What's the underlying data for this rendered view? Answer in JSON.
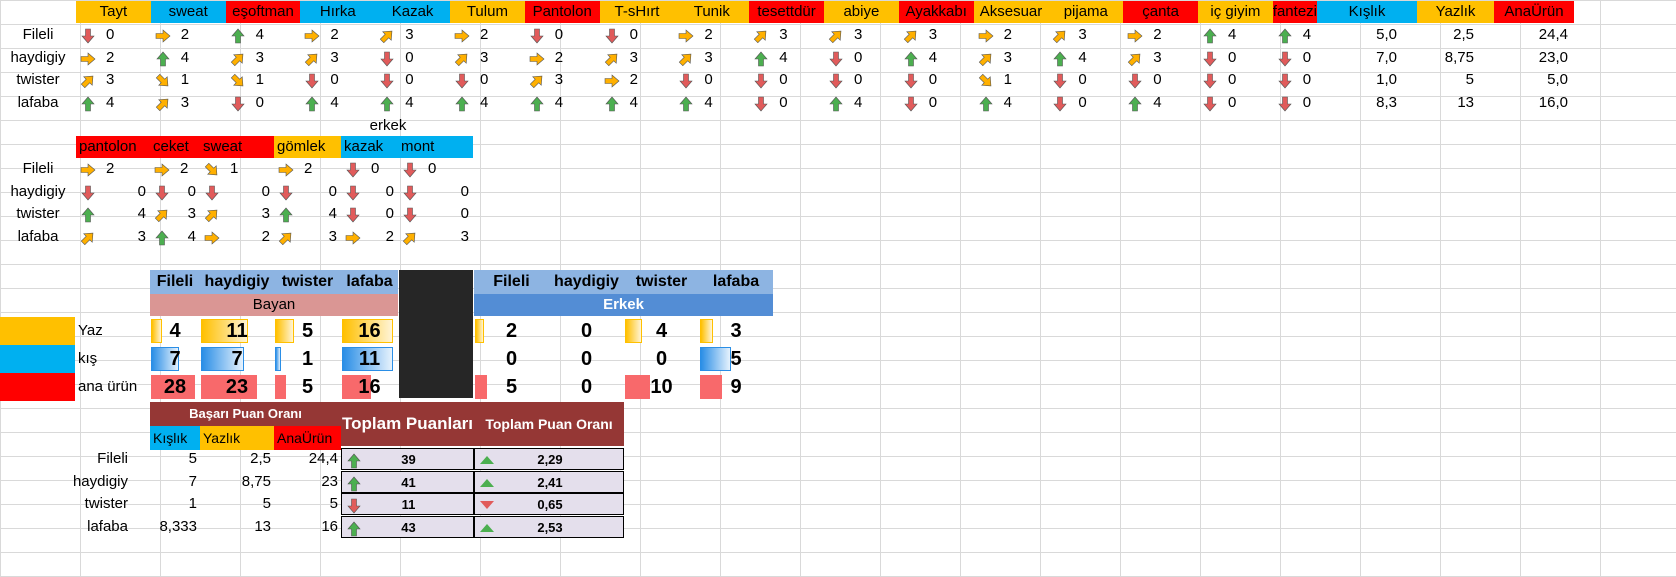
{
  "women_table": {
    "headers": [
      {
        "label": "Tayt",
        "color": "#ffc000"
      },
      {
        "label": "sweat",
        "color": "#00b0f0"
      },
      {
        "label": "eşoftman",
        "color": "#ff0000"
      },
      {
        "label": "Hırka",
        "color": "#00b0f0"
      },
      {
        "label": "Kazak",
        "color": "#00b0f0"
      },
      {
        "label": "Tulum",
        "color": "#ffc000"
      },
      {
        "label": "Pantolon",
        "color": "#ff0000"
      },
      {
        "label": "T-sHırt",
        "color": "#ffc000"
      },
      {
        "label": "Tunik",
        "color": "#ffc000"
      },
      {
        "label": "tesettdür",
        "color": "#ff0000"
      },
      {
        "label": "abiye",
        "color": "#ffc000"
      },
      {
        "label": "Ayakkabı",
        "color": "#ff0000"
      },
      {
        "label": "Aksesuar",
        "color": "#ffc000"
      },
      {
        "label": "pijama",
        "color": "#ffc000"
      },
      {
        "label": "çanta",
        "color": "#ff0000"
      },
      {
        "label": "iç giyim",
        "color": "#ffc000"
      },
      {
        "label": "fantezi giyim",
        "color": "#ff0000"
      }
    ],
    "summary_headers": [
      {
        "label": "Kışlık",
        "color": "#00b0f0"
      },
      {
        "label": "Yazlık",
        "color": "#ffc000"
      },
      {
        "label": "AnaÜrün",
        "color": "#ff0000"
      }
    ],
    "rows": [
      {
        "name": "Fileli",
        "values": [
          "0",
          "2",
          "4",
          "2",
          "3",
          "2",
          "0",
          "0",
          "2",
          "3",
          "3",
          "3",
          "2",
          "3",
          "2",
          "4",
          "4"
        ],
        "summary": [
          "5,0",
          "2,5",
          "24,4"
        ]
      },
      {
        "name": "haydigiy",
        "values": [
          "2",
          "4",
          "3",
          "3",
          "0",
          "3",
          "2",
          "3",
          "3",
          "4",
          "0",
          "4",
          "3",
          "4",
          "3",
          "0",
          "0"
        ],
        "summary": [
          "7,0",
          "8,75",
          "23,0"
        ]
      },
      {
        "name": "twister",
        "values": [
          "3",
          "1",
          "1",
          "0",
          "0",
          "0",
          "3",
          "2",
          "0",
          "0",
          "0",
          "0",
          "1",
          "0",
          "0",
          "0",
          "0"
        ],
        "summary": [
          "1,0",
          "5",
          "5,0"
        ]
      },
      {
        "name": "lafaba",
        "values": [
          "4",
          "3",
          "0",
          "4",
          "4",
          "4",
          "4",
          "4",
          "4",
          "0",
          "4",
          "0",
          "4",
          "0",
          "4",
          "0",
          "0"
        ],
        "summary": [
          "8,3",
          "13",
          "16,0"
        ]
      }
    ]
  },
  "men_table": {
    "title": "erkek",
    "headers": [
      {
        "label": "pantolon",
        "color": "#ff0000"
      },
      {
        "label": "ceket",
        "color": "#ff0000"
      },
      {
        "label": "sweat",
        "color": "#ff0000"
      },
      {
        "label": "gömlek",
        "color": "#ffc000"
      },
      {
        "label": "kazak",
        "color": "#00b0f0"
      },
      {
        "label": "mont",
        "color": "#00b0f0"
      }
    ],
    "rows": [
      {
        "name": "Fileli",
        "values": [
          "2",
          "2",
          "1",
          "2",
          "0",
          "0"
        ]
      },
      {
        "name": "haydigiy",
        "values": [
          "0",
          "0",
          "0",
          "0",
          "0",
          "0"
        ]
      },
      {
        "name": "twister",
        "values": [
          "4",
          "3",
          "3",
          "4",
          "0",
          "0"
        ]
      },
      {
        "name": "lafaba",
        "values": [
          "3",
          "4",
          "2",
          "3",
          "2",
          "3"
        ]
      }
    ]
  },
  "score_block": {
    "brands": [
      "Fileli",
      "haydigiy",
      "twister",
      "lafaba"
    ],
    "bayan_label": "Bayan",
    "erkek_label": "Erkek",
    "row_labels": [
      "Yaz",
      "kış",
      "ana ürün"
    ],
    "bayan": {
      "yaz": [
        "4",
        "11",
        "5",
        "16"
      ],
      "kis": [
        "7",
        "7",
        "1",
        "11"
      ],
      "ana": [
        "28",
        "23",
        "5",
        "16"
      ]
    },
    "erkek": {
      "yaz": [
        "2",
        "0",
        "4",
        "3"
      ],
      "kis": [
        "0",
        "0",
        "0",
        "5"
      ],
      "ana": [
        "5",
        "0",
        "10",
        "9"
      ]
    },
    "colors": {
      "yaz": "#ffc000",
      "kis": "#00b0f0",
      "ana": "#ff0000"
    }
  },
  "success_table": {
    "title": "Başarı Puan Oranı",
    "headers": [
      {
        "label": "Kışlık",
        "color": "#00b0f0"
      },
      {
        "label": "Yazlık",
        "color": "#ffc000"
      },
      {
        "label": "AnaÜrün",
        "color": "#ff0000"
      }
    ],
    "total_label": "Toplam Puanları",
    "ratio_label": "Toplam Puan Oranı",
    "rows": [
      {
        "name": "Fileli",
        "kis": "5",
        "yaz": "2,5",
        "ana": "24,4",
        "total": "39",
        "ratio": "2,29",
        "trend": "up"
      },
      {
        "name": "haydigiy",
        "kis": "7",
        "yaz": "8,75",
        "ana": "23",
        "total": "41",
        "ratio": "2,41",
        "trend": "up"
      },
      {
        "name": "twister",
        "kis": "1",
        "yaz": "5",
        "ana": "5",
        "total": "11",
        "ratio": "0,65",
        "trend": "down"
      },
      {
        "name": "lafaba",
        "kis": "8,333",
        "yaz": "13",
        "ana": "16",
        "total": "43",
        "ratio": "2,53",
        "trend": "up"
      }
    ]
  }
}
